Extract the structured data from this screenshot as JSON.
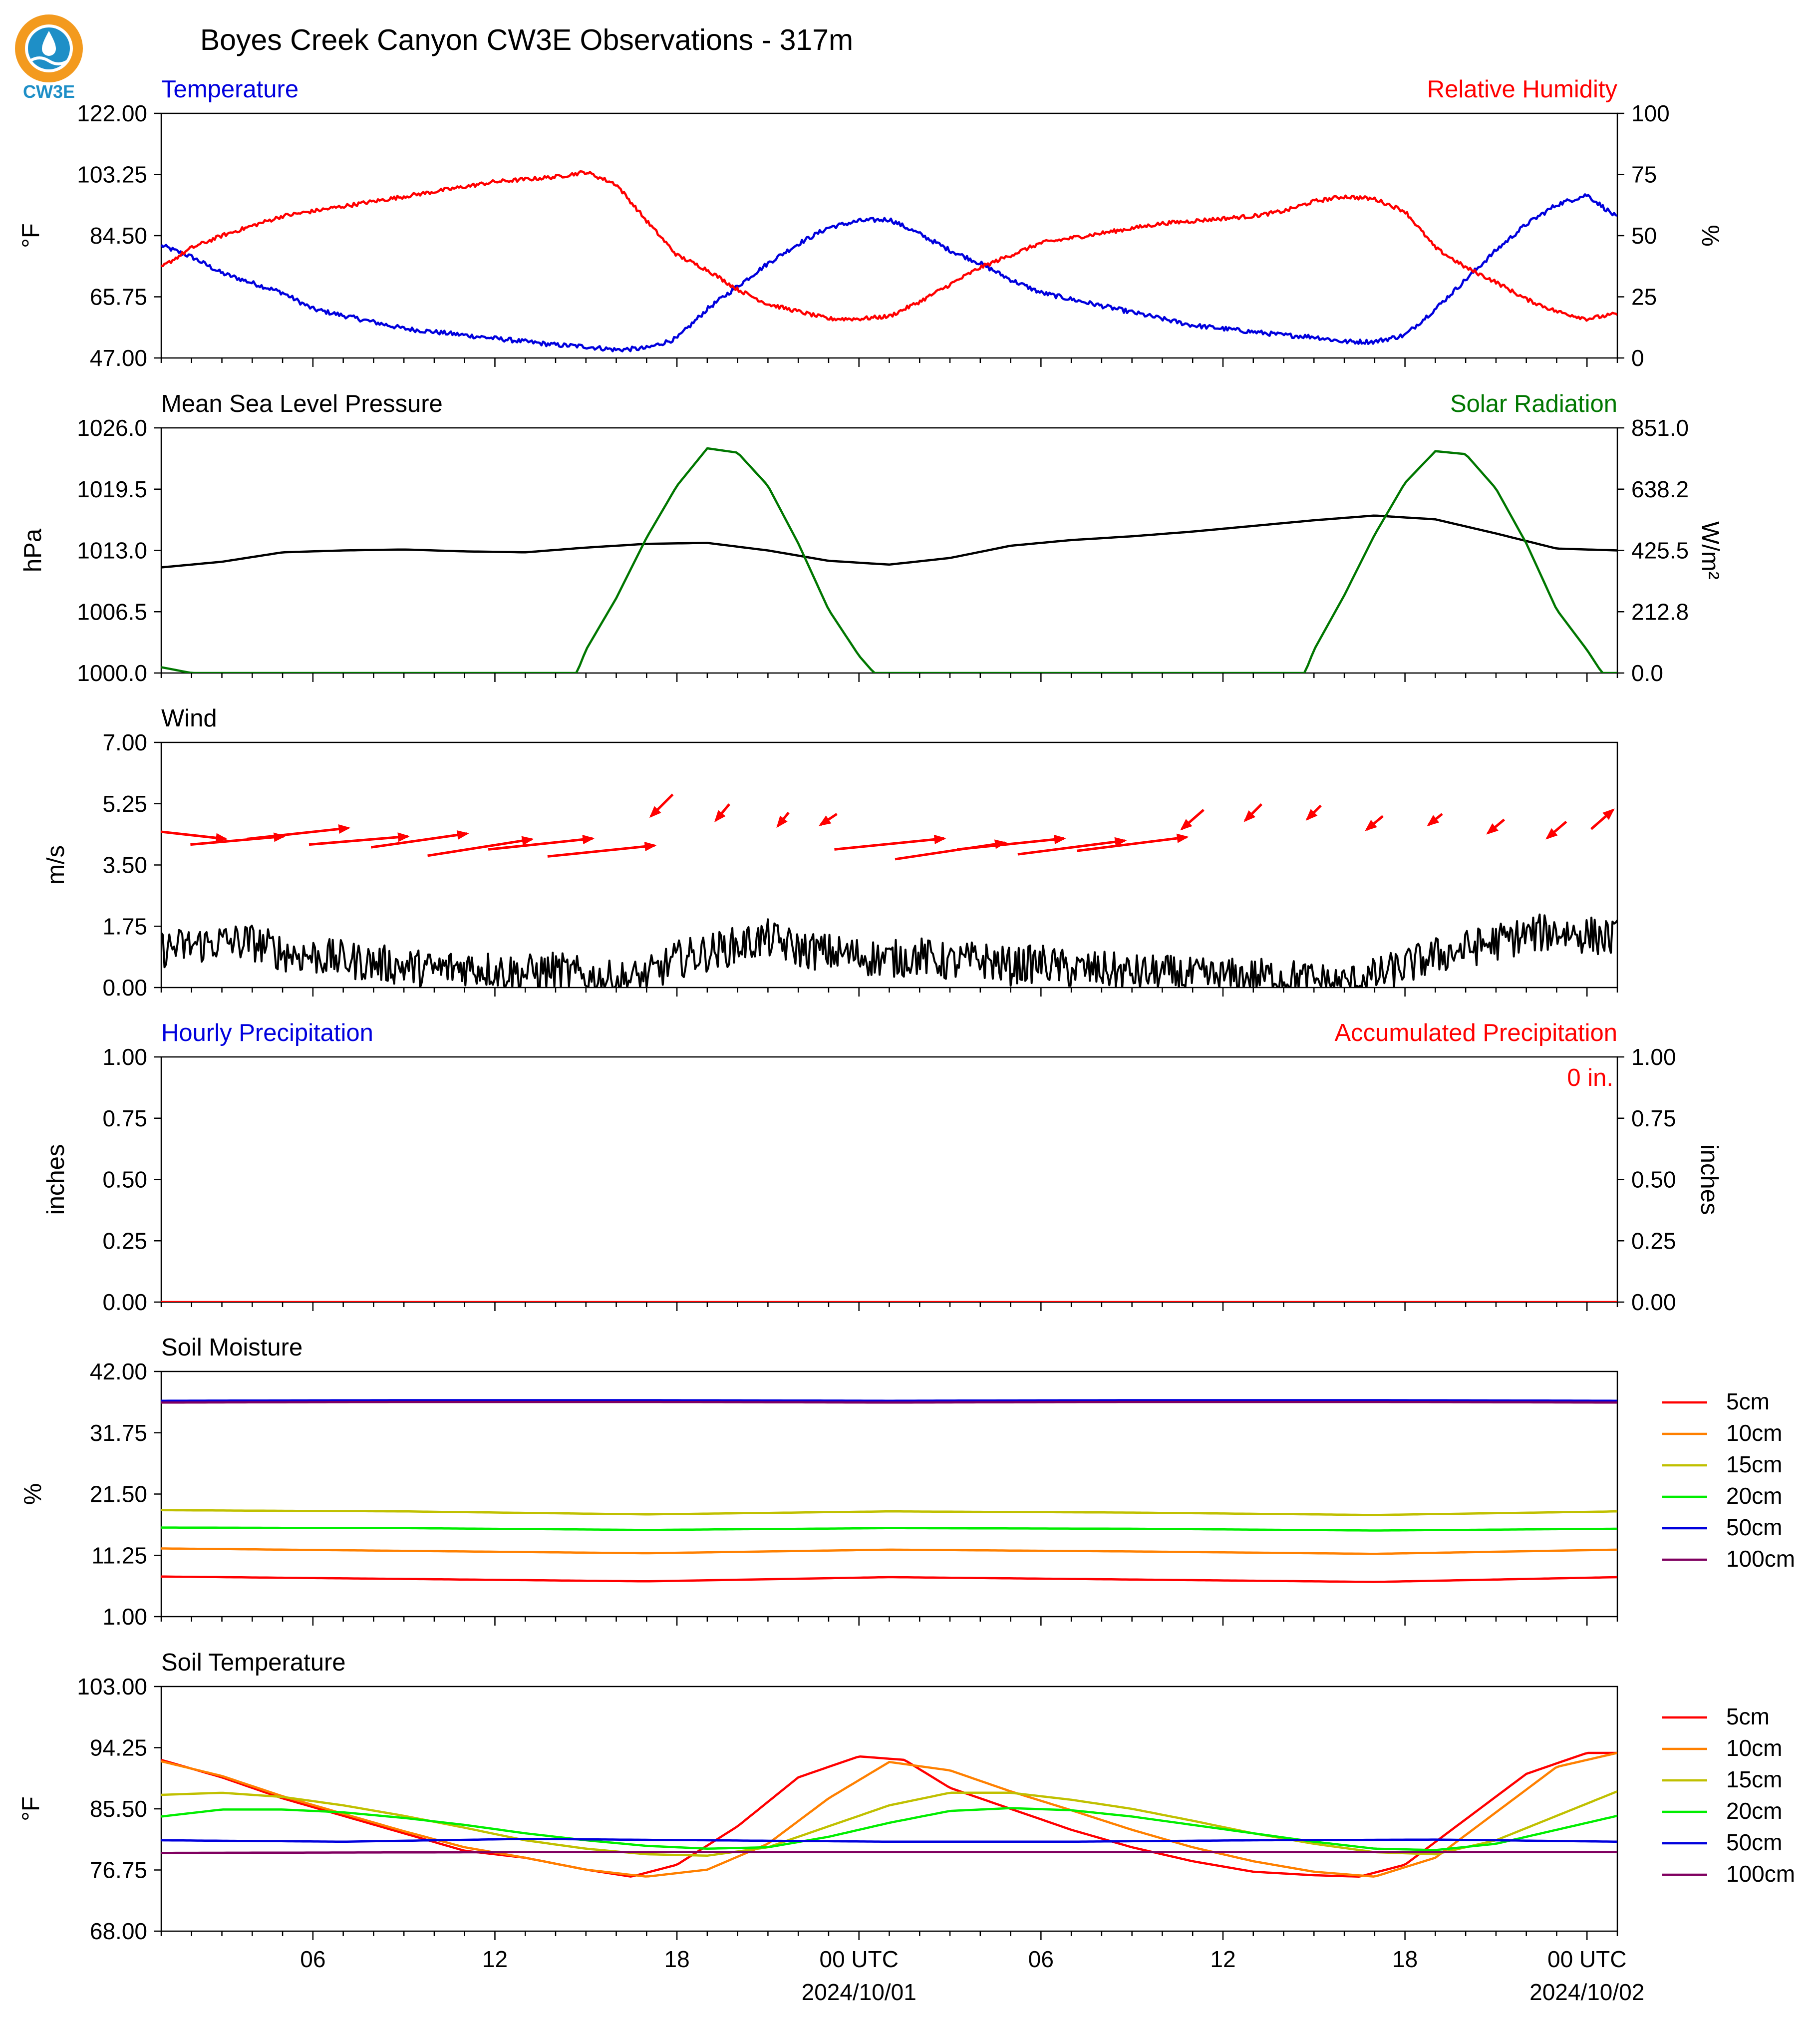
{
  "title": "Boyes Creek Canyon CW3E Observations - 317m",
  "logo": {
    "text": "CW3E"
  },
  "x_axis": {
    "hours": 48,
    "start": "2024-09-30 01:00 UTC",
    "ticks": [
      {
        "h": 5,
        "label": "06",
        "date": ""
      },
      {
        "h": 11,
        "label": "12",
        "date": ""
      },
      {
        "h": 17,
        "label": "18",
        "date": ""
      },
      {
        "h": 23,
        "label": "00 UTC",
        "date": "2024/10/01"
      },
      {
        "h": 29,
        "label": "06",
        "date": ""
      },
      {
        "h": 35,
        "label": "12",
        "date": ""
      },
      {
        "h": 41,
        "label": "18",
        "date": ""
      },
      {
        "h": 47,
        "label": "00 UTC",
        "date": "2024/10/02"
      }
    ]
  },
  "colors": {
    "red": "#ff0000",
    "blue": "#0000dd",
    "green": "#007700",
    "black": "#000000",
    "orange": "#ff8000",
    "olive": "#c0c000",
    "lime": "#00ee00",
    "purple": "#800060"
  },
  "chart_data": [
    {
      "type": "line",
      "id": "temp_rh",
      "title_left": "Temperature",
      "title_right": "Relative Humidity",
      "ylabel_left": "°F",
      "ylabel_right": "%",
      "ylim_left": [
        47,
        122
      ],
      "ylim_right": [
        0,
        100
      ],
      "yticks_left": [
        "47.00",
        "65.75",
        "84.50",
        "103.25",
        "122.00"
      ],
      "yticks_right": [
        "0",
        "25",
        "50",
        "75",
        "100"
      ],
      "series": [
        {
          "name": "Temperature",
          "axis": "left",
          "color": "#0000dd",
          "x": [
            0,
            1,
            2,
            3,
            4,
            5,
            6,
            7,
            8,
            9,
            10,
            11,
            12,
            13,
            14,
            15,
            16,
            17,
            18,
            19,
            20,
            21,
            22,
            23,
            24,
            25,
            26,
            27,
            28,
            29,
            30,
            31,
            32,
            33,
            34,
            35,
            36,
            37,
            38,
            39,
            40,
            41,
            42,
            43,
            44,
            45,
            46,
            47,
            48
          ],
          "y": [
            81.5,
            78,
            73,
            70,
            67,
            62,
            60,
            58,
            56,
            55,
            54,
            53,
            52,
            51,
            50.5,
            49.5,
            50,
            53,
            62,
            69,
            76,
            82,
            87,
            89,
            89.5,
            85,
            80,
            76,
            71,
            67,
            65,
            63,
            61,
            59,
            57,
            56,
            55,
            54,
            53.5,
            52,
            52,
            54,
            62,
            71,
            80,
            88,
            94,
            97,
            90
          ]
        },
        {
          "name": "Relative Humidity",
          "axis": "right",
          "color": "#ff0000",
          "x": [
            0,
            1,
            2,
            3,
            4,
            5,
            6,
            7,
            8,
            9,
            10,
            11,
            12,
            13,
            14,
            15,
            16,
            17,
            18,
            19,
            20,
            21,
            22,
            23,
            24,
            25,
            26,
            27,
            28,
            29,
            30,
            31,
            32,
            33,
            34,
            35,
            36,
            37,
            38,
            39,
            40,
            41,
            42,
            43,
            44,
            45,
            46,
            47,
            48
          ],
          "y": [
            37,
            45,
            50,
            54,
            58,
            60,
            62,
            64,
            66,
            68,
            70,
            72,
            73,
            74,
            76,
            71,
            56,
            42,
            36,
            28,
            22,
            19,
            16,
            16,
            17,
            23,
            30,
            37,
            42,
            47,
            49,
            51,
            53,
            55,
            56,
            57,
            58,
            60,
            64,
            66,
            65,
            60,
            45,
            37,
            31,
            24,
            19,
            16,
            18
          ]
        }
      ],
      "annotations": []
    },
    {
      "type": "line",
      "id": "mslp_solar",
      "title_left": "Mean Sea Level Pressure",
      "title_right": "Solar Radiation",
      "ylabel_left": "hPa",
      "ylabel_right": "W/m²",
      "ylim_left": [
        1000,
        1026
      ],
      "ylim_right": [
        0,
        851
      ],
      "yticks_left": [
        "1000.0",
        "1006.5",
        "1013.0",
        "1019.5",
        "1026.0"
      ],
      "yticks_right": [
        "0.0",
        "212.8",
        "425.5",
        "638.2",
        "851.0"
      ],
      "series": [
        {
          "name": "Mean Sea Level Pressure",
          "axis": "left",
          "color": "#000000",
          "x": [
            0,
            2,
            4,
            6,
            8,
            10,
            12,
            14,
            16,
            18,
            20,
            22,
            24,
            26,
            28,
            30,
            32,
            34,
            36,
            38,
            40,
            42,
            44,
            46,
            48
          ],
          "y": [
            1011.2,
            1011.8,
            1012.8,
            1013.0,
            1013.1,
            1012.9,
            1012.8,
            1013.3,
            1013.7,
            1013.8,
            1013.0,
            1011.9,
            1011.5,
            1012.2,
            1013.5,
            1014.1,
            1014.5,
            1015.0,
            1015.6,
            1016.2,
            1016.7,
            1016.3,
            1014.8,
            1013.2,
            1013.0
          ]
        },
        {
          "name": "Solar Radiation",
          "axis": "right",
          "color": "#007700",
          "x": [
            0,
            1,
            13.7,
            14,
            15,
            16,
            17,
            18,
            19,
            20,
            21,
            22,
            23,
            23.5,
            24,
            25,
            37.7,
            38,
            39,
            40,
            41,
            42,
            43,
            44,
            45,
            46,
            47,
            47.5,
            48
          ],
          "y": [
            20,
            0,
            0,
            80,
            260,
            470,
            650,
            780,
            765,
            650,
            450,
            220,
            60,
            0,
            0,
            0,
            0,
            80,
            270,
            480,
            660,
            770,
            760,
            640,
            450,
            220,
            80,
            0,
            0
          ]
        }
      ],
      "annotations": []
    },
    {
      "type": "line",
      "id": "wind",
      "title_left": "Wind",
      "ylabel_left": "m/s",
      "ylim_left": [
        0,
        7
      ],
      "yticks_left": [
        "0.00",
        "1.75",
        "3.50",
        "5.25",
        "7.00"
      ],
      "series": [
        {
          "name": "Wind Speed",
          "axis": "left",
          "color": "#000000",
          "x": [
            0,
            1,
            2,
            3,
            4,
            5,
            6,
            7,
            8,
            9,
            10,
            11,
            12,
            13,
            14,
            15,
            16,
            17,
            18,
            19,
            20,
            21,
            22,
            23,
            24,
            25,
            26,
            27,
            28,
            29,
            30,
            31,
            32,
            33,
            34,
            35,
            36,
            37,
            38,
            39,
            40,
            41,
            42,
            43,
            44,
            45,
            46,
            47,
            48
          ],
          "y": [
            1.1,
            1.2,
            1.3,
            1.3,
            1.0,
            0.9,
            0.8,
            0.7,
            0.6,
            0.5,
            0.6,
            0.5,
            0.4,
            0.5,
            0.3,
            0.2,
            0.3,
            0.8,
            1.0,
            1.2,
            1.4,
            1.1,
            1.0,
            0.9,
            0.8,
            0.9,
            0.7,
            0.8,
            0.6,
            0.7,
            0.5,
            0.5,
            0.4,
            0.4,
            0.3,
            0.3,
            0.3,
            0.3,
            0.2,
            0.1,
            0.3,
            0.6,
            0.9,
            1.1,
            1.3,
            1.5,
            1.6,
            1.5,
            1.4
          ]
        },
        {
          "name": "Wind Arrows",
          "axis": "left",
          "color": "#ff0000",
          "x": [
            0.5,
            2.5,
            4.5,
            6.5,
            8.5,
            10.5,
            12.5,
            14.5,
            16.5,
            18.5,
            20.5,
            22,
            24,
            26,
            28,
            30,
            32,
            34,
            36,
            38,
            40,
            42,
            44,
            46,
            47.5
          ],
          "y": [
            4.4,
            4.2,
            4.4,
            4.2,
            4.2,
            4.0,
            4.1,
            3.9,
            5.2,
            5.0,
            4.8,
            4.8,
            4.1,
            3.9,
            4.1,
            4.0,
            4.1,
            4.8,
            5.0,
            5.0,
            4.7,
            4.8,
            4.6,
            4.5,
            4.8
          ]
        }
      ],
      "annotations": []
    },
    {
      "type": "line",
      "id": "precip",
      "title_left": "Hourly Precipitation",
      "title_right": "Accumulated Precipitation",
      "ylabel_left": "inches",
      "ylabel_right": "inches",
      "ylim_left": [
        0,
        1
      ],
      "ylim_right": [
        0,
        1
      ],
      "yticks_left": [
        "0.00",
        "0.25",
        "0.50",
        "0.75",
        "1.00"
      ],
      "yticks_right": [
        "0.00",
        "0.25",
        "0.50",
        "0.75",
        "1.00"
      ],
      "series": [
        {
          "name": "Accumulated Precipitation",
          "axis": "right",
          "color": "#ff0000",
          "x": [
            0,
            48
          ],
          "y": [
            0,
            0
          ]
        }
      ],
      "annotations": [
        "0 in."
      ]
    },
    {
      "type": "line",
      "id": "soil_moisture",
      "title_left": "Soil Moisture",
      "ylabel_left": "%",
      "ylim_left": [
        1,
        42
      ],
      "yticks_left": [
        "1.00",
        "11.25",
        "21.50",
        "31.75",
        "42.00"
      ],
      "legend_placement": "right",
      "series": [
        {
          "name": "5cm",
          "axis": "left",
          "color": "#ff0000",
          "x": [
            0,
            8,
            16,
            24,
            32,
            40,
            48
          ],
          "y": [
            7.7,
            7.3,
            6.9,
            7.6,
            7.2,
            6.8,
            7.6
          ]
        },
        {
          "name": "10cm",
          "axis": "left",
          "color": "#ff8000",
          "x": [
            0,
            8,
            16,
            24,
            32,
            40,
            48
          ],
          "y": [
            12.4,
            12.0,
            11.6,
            12.2,
            11.9,
            11.5,
            12.2
          ]
        },
        {
          "name": "15cm",
          "axis": "left",
          "color": "#c0c000",
          "x": [
            0,
            8,
            16,
            24,
            32,
            40,
            48
          ],
          "y": [
            18.8,
            18.6,
            18.1,
            18.6,
            18.4,
            18.0,
            18.6
          ]
        },
        {
          "name": "20cm",
          "axis": "left",
          "color": "#00ee00",
          "x": [
            0,
            8,
            16,
            24,
            32,
            40,
            48
          ],
          "y": [
            15.9,
            15.8,
            15.5,
            15.8,
            15.7,
            15.4,
            15.7
          ]
        },
        {
          "name": "50cm",
          "axis": "left",
          "color": "#0000dd",
          "x": [
            0,
            8,
            16,
            24,
            32,
            40,
            48
          ],
          "y": [
            37.1,
            37.2,
            37.2,
            37.1,
            37.2,
            37.2,
            37.1
          ]
        },
        {
          "name": "100cm",
          "axis": "left",
          "color": "#800060",
          "x": [
            0,
            8,
            16,
            24,
            32,
            40,
            48
          ],
          "y": [
            36.8,
            36.9,
            36.9,
            36.8,
            36.9,
            36.9,
            36.8
          ]
        }
      ],
      "annotations": []
    },
    {
      "type": "line",
      "id": "soil_temp",
      "title_left": "Soil Temperature",
      "ylabel_left": "°F",
      "ylim_left": [
        68,
        103
      ],
      "yticks_left": [
        "68.00",
        "76.75",
        "85.50",
        "94.25",
        "103.00"
      ],
      "legend_placement": "right",
      "series": [
        {
          "name": "5cm",
          "axis": "left",
          "color": "#ff0000",
          "x": [
            0,
            2,
            4,
            6,
            8,
            10,
            12,
            14,
            15.5,
            17,
            19,
            21,
            23,
            24.5,
            26,
            28,
            30,
            32,
            34,
            36,
            38,
            39.5,
            41,
            43,
            45,
            47,
            48
          ],
          "y": [
            92.5,
            90,
            87,
            84.5,
            82,
            79.5,
            78.5,
            76.8,
            75.8,
            77.5,
            83,
            90,
            93,
            92.5,
            88.5,
            85.5,
            82.5,
            80,
            78,
            76.5,
            76,
            75.8,
            77.5,
            84,
            90.5,
            93.5,
            93.5
          ]
        },
        {
          "name": "10cm",
          "axis": "left",
          "color": "#ff8000",
          "x": [
            0,
            2,
            4,
            6,
            8,
            10,
            12,
            14,
            16,
            18,
            20,
            22,
            24,
            26,
            28,
            30,
            32,
            34,
            36,
            38,
            40,
            42,
            44,
            46,
            48
          ],
          "y": [
            92.3,
            90.2,
            87.3,
            84.8,
            82.3,
            80,
            78.5,
            76.8,
            75.8,
            76.8,
            80.5,
            87,
            92.2,
            91,
            88,
            85.3,
            82.5,
            80,
            78,
            76.5,
            75.8,
            78.5,
            85,
            91.5,
            93.5
          ]
        },
        {
          "name": "15cm",
          "axis": "left",
          "color": "#c0c000",
          "x": [
            0,
            2,
            4,
            6,
            8,
            10,
            12,
            14,
            16,
            18,
            20,
            22,
            24,
            26,
            28,
            30,
            32,
            34,
            36,
            38,
            40,
            42,
            44,
            46,
            48
          ],
          "y": [
            87.5,
            87.8,
            87.2,
            86,
            84.5,
            82.8,
            81,
            79.8,
            79,
            78.8,
            80,
            83,
            86,
            87.8,
            87.8,
            86.8,
            85.5,
            83.8,
            82,
            80.5,
            79.3,
            79,
            81,
            84.5,
            88
          ]
        },
        {
          "name": "20cm",
          "axis": "left",
          "color": "#00ee00",
          "x": [
            0,
            2,
            4,
            6,
            8,
            10,
            12,
            14,
            16,
            18,
            20,
            22,
            24,
            26,
            28,
            30,
            32,
            34,
            36,
            38,
            40,
            42,
            44,
            46,
            48
          ],
          "y": [
            84.4,
            85.4,
            85.4,
            85,
            84.2,
            83.2,
            82,
            81,
            80.2,
            79.8,
            80,
            81.5,
            83.5,
            85.2,
            85.6,
            85.3,
            84.4,
            83.2,
            82,
            80.8,
            79.8,
            79.6,
            80.5,
            82.5,
            84.5
          ]
        },
        {
          "name": "50cm",
          "axis": "left",
          "color": "#0000dd",
          "x": [
            0,
            6,
            12,
            18,
            24,
            30,
            36,
            42,
            48
          ],
          "y": [
            81,
            80.8,
            81.2,
            81,
            80.8,
            80.8,
            81,
            81.1,
            80.8
          ]
        },
        {
          "name": "100cm",
          "axis": "left",
          "color": "#800060",
          "x": [
            0,
            12,
            24,
            36,
            48
          ],
          "y": [
            79.2,
            79.3,
            79.3,
            79.3,
            79.3
          ]
        }
      ],
      "annotations": []
    }
  ]
}
